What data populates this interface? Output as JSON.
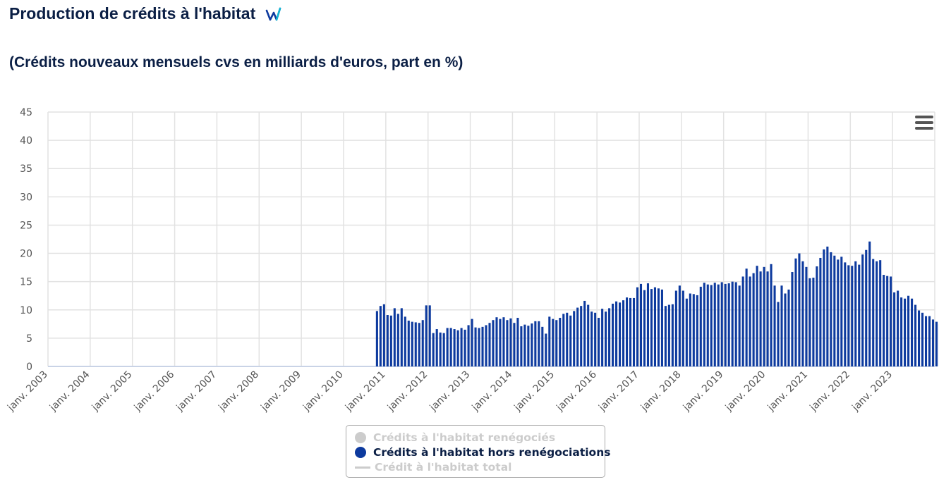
{
  "header": {
    "title": "Production de crédits à l'habitat",
    "logo_icon": "webstat-logo-icon",
    "subtitle": "(Crédits nouveaux mensuels cvs en milliards d'euros, part en %)"
  },
  "menu": {
    "icon": "hamburger-menu-icon"
  },
  "colors": {
    "bar": "#0d3a9e",
    "grid": "#e2e2e2",
    "axis_text": "#555555",
    "title": "#0b1f45"
  },
  "chart_data": {
    "type": "bar",
    "title": "Production de crédits à l'habitat",
    "subtitle": "(Crédits nouveaux mensuels cvs en milliards d'euros, part en %)",
    "ylim": [
      0,
      45
    ],
    "y_ticks": [
      0,
      5,
      10,
      15,
      20,
      25,
      30,
      35,
      40,
      45
    ],
    "x_range": [
      "2003-01",
      "2023-12"
    ],
    "x_ticks": [
      "janv. 2003",
      "janv. 2004",
      "janv. 2005",
      "janv. 2006",
      "janv. 2007",
      "janv. 2008",
      "janv. 2009",
      "janv. 2010",
      "janv. 2011",
      "janv. 2012",
      "janv. 2013",
      "janv. 2014",
      "janv. 2015",
      "janv. 2016",
      "janv. 2017",
      "janv. 2018",
      "janv. 2019",
      "janv. 2020",
      "janv. 2021",
      "janv. 2022",
      "janv. 2023"
    ],
    "grid": true,
    "legend_position": "bottom-center",
    "legend": [
      {
        "name": "Crédits à l'habitat renégociés",
        "visible": false,
        "symbol": "circle",
        "color": "#cccccc"
      },
      {
        "name": "Crédits à l'habitat hors renégociations",
        "visible": true,
        "symbol": "circle",
        "color": "#0d3a9e"
      },
      {
        "name": "Crédit à l'habitat total",
        "visible": false,
        "symbol": "line",
        "color": "#cccccc"
      }
    ],
    "series": [
      {
        "name": "Crédits à l'habitat hors renégociations",
        "start": "2010-10",
        "values": [
          9.8,
          10.7,
          11.0,
          9.1,
          9.0,
          10.3,
          9.3,
          10.3,
          8.8,
          8.1,
          7.9,
          7.8,
          7.7,
          8.2,
          10.8,
          10.8,
          5.9,
          6.6,
          6.0,
          5.9,
          6.8,
          6.8,
          6.6,
          6.4,
          6.8,
          6.5,
          7.3,
          8.4,
          6.9,
          6.8,
          7.0,
          7.3,
          7.7,
          8.2,
          8.7,
          8.4,
          8.7,
          8.2,
          8.5,
          7.7,
          8.6,
          7.1,
          7.4,
          7.2,
          7.6,
          8.0,
          8.0,
          7.0,
          5.8,
          8.8,
          8.4,
          8.2,
          8.6,
          9.3,
          9.5,
          9.0,
          9.8,
          10.4,
          10.7,
          11.6,
          10.9,
          9.7,
          9.5,
          8.6,
          10.2,
          9.7,
          10.3,
          11.1,
          11.5,
          11.3,
          11.7,
          12.2,
          12.1,
          12.1,
          14.0,
          14.6,
          13.5,
          14.7,
          13.7,
          14.0,
          13.8,
          13.6,
          10.7,
          10.9,
          11.0,
          13.4,
          14.3,
          13.4,
          12.0,
          12.9,
          12.8,
          12.6,
          14.1,
          14.8,
          14.5,
          14.4,
          14.8,
          14.5,
          14.9,
          14.6,
          14.7,
          15.0,
          14.9,
          14.3,
          15.9,
          17.3,
          15.9,
          16.5,
          17.8,
          16.8,
          17.6,
          16.8,
          18.1,
          14.3,
          11.4,
          14.3,
          12.9,
          13.6,
          16.7,
          19.1,
          20.0,
          18.6,
          17.6,
          15.6,
          15.7,
          17.7,
          19.2,
          20.7,
          21.2,
          20.2,
          19.6,
          18.9,
          19.4,
          18.4,
          17.9,
          17.8,
          18.6,
          18.0,
          19.8,
          20.6,
          22.1,
          19.0,
          18.6,
          18.8,
          16.2,
          16.0,
          15.9,
          13.1,
          13.4,
          12.2,
          12.0,
          12.5,
          12.0,
          10.9,
          9.9,
          9.5,
          8.9,
          8.9,
          8.3,
          7.9,
          7.5
        ]
      }
    ]
  }
}
